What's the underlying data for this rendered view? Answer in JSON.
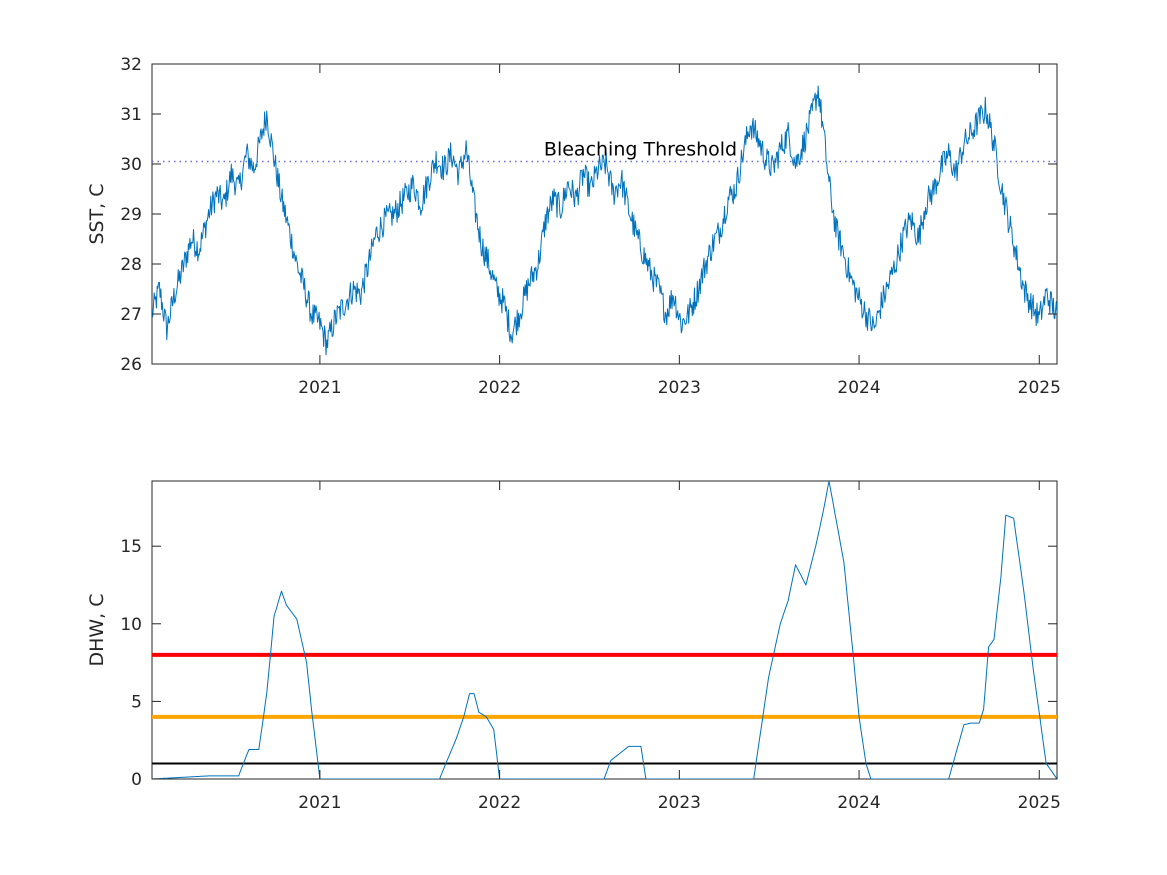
{
  "chart_data": [
    {
      "type": "line",
      "ylabel": "SST, C",
      "xlabel": "",
      "title": "",
      "xlim": [
        "2020-01-26",
        "2025-02-06"
      ],
      "ylim": [
        26,
        32
      ],
      "yticks": [
        26,
        27,
        28,
        29,
        30,
        31,
        32
      ],
      "xticks": [
        "2021",
        "2022",
        "2023",
        "2024",
        "2025"
      ],
      "threshold": {
        "value": 30.05,
        "label": "Bleaching Threshold",
        "label_x": "2022-04-01",
        "style": "dotted",
        "color": "#6a6ae0"
      },
      "series": [
        {
          "color": "#0072bd",
          "x": [
            "2020-01-26",
            "2020-02-10",
            "2020-02-25",
            "2020-03-12",
            "2020-03-28",
            "2020-04-15",
            "2020-05-01",
            "2020-05-20",
            "2020-06-05",
            "2020-06-20",
            "2020-07-05",
            "2020-07-20",
            "2020-08-05",
            "2020-08-20",
            "2020-09-05",
            "2020-09-15",
            "2020-09-30",
            "2020-10-15",
            "2020-10-30",
            "2020-11-15",
            "2020-12-01",
            "2020-12-15",
            "2021-01-01",
            "2021-01-15",
            "2021-02-01",
            "2021-02-20",
            "2021-03-10",
            "2021-03-25",
            "2021-04-10",
            "2021-04-25",
            "2021-05-15",
            "2021-06-01",
            "2021-06-20",
            "2021-07-10",
            "2021-07-25",
            "2021-08-10",
            "2021-08-25",
            "2021-09-10",
            "2021-09-25",
            "2021-10-10",
            "2021-10-25",
            "2021-11-10",
            "2021-11-25",
            "2021-12-10",
            "2021-12-25",
            "2022-01-10",
            "2022-01-25",
            "2022-02-10",
            "2022-03-01",
            "2022-03-20",
            "2022-04-05",
            "2022-04-20",
            "2022-05-05",
            "2022-05-20",
            "2022-06-05",
            "2022-06-20",
            "2022-07-05",
            "2022-07-20",
            "2022-08-05",
            "2022-08-20",
            "2022-09-05",
            "2022-09-20",
            "2022-10-05",
            "2022-10-20",
            "2022-11-05",
            "2022-11-20",
            "2022-12-05",
            "2022-12-20",
            "2023-01-05",
            "2023-01-20",
            "2023-02-05",
            "2023-02-20",
            "2023-03-10",
            "2023-03-25",
            "2023-04-10",
            "2023-04-25",
            "2023-05-10",
            "2023-05-25",
            "2023-06-10",
            "2023-06-25",
            "2023-07-10",
            "2023-07-25",
            "2023-08-10",
            "2023-08-25",
            "2023-09-10",
            "2023-09-25",
            "2023-10-10",
            "2023-10-20",
            "2023-11-01",
            "2023-11-15",
            "2023-12-01",
            "2023-12-15",
            "2024-01-01",
            "2024-01-15",
            "2024-02-01",
            "2024-02-15",
            "2024-03-01",
            "2024-03-15",
            "2024-04-01",
            "2024-04-15",
            "2024-05-01",
            "2024-05-15",
            "2024-06-01",
            "2024-06-15",
            "2024-07-01",
            "2024-07-15",
            "2024-08-01",
            "2024-08-15",
            "2024-09-01",
            "2024-09-15",
            "2024-10-01",
            "2024-10-15",
            "2024-10-30",
            "2024-11-15",
            "2024-12-01",
            "2024-12-15",
            "2025-01-01",
            "2025-01-15",
            "2025-02-06"
          ],
          "y": [
            27.0,
            27.5,
            26.7,
            27.4,
            27.9,
            28.5,
            28.3,
            29.0,
            29.4,
            29.2,
            29.8,
            29.5,
            30.2,
            29.9,
            30.6,
            31.0,
            30.1,
            29.3,
            28.7,
            28.0,
            27.5,
            27.0,
            26.8,
            26.4,
            26.9,
            27.2,
            27.5,
            27.4,
            28.0,
            28.6,
            28.9,
            29.0,
            29.3,
            29.6,
            29.2,
            29.7,
            30.1,
            29.9,
            30.2,
            29.8,
            30.3,
            29.2,
            28.4,
            28.0,
            27.5,
            27.2,
            26.6,
            27.0,
            27.6,
            28.0,
            28.9,
            29.3,
            29.1,
            29.6,
            29.3,
            29.8,
            29.5,
            29.9,
            30.0,
            29.4,
            29.7,
            29.1,
            28.6,
            28.2,
            27.8,
            27.5,
            27.0,
            27.4,
            26.8,
            27.0,
            27.4,
            27.9,
            28.4,
            28.7,
            29.3,
            29.5,
            30.2,
            30.8,
            30.5,
            30.1,
            29.9,
            30.3,
            30.6,
            30.0,
            30.4,
            30.9,
            31.5,
            30.7,
            29.6,
            28.7,
            28.2,
            27.7,
            27.3,
            27.0,
            26.7,
            27.2,
            27.6,
            28.0,
            28.6,
            28.9,
            28.5,
            29.2,
            29.5,
            29.9,
            30.2,
            29.8,
            30.4,
            30.6,
            30.9,
            31.1,
            30.4,
            29.6,
            28.9,
            28.2,
            27.5,
            27.2,
            26.9,
            27.4,
            27.0
          ]
        }
      ]
    },
    {
      "type": "line",
      "ylabel": "DHW, C",
      "xlabel": "",
      "title": "",
      "xlim": [
        "2020-01-26",
        "2025-02-06"
      ],
      "ylim": [
        0,
        19.2
      ],
      "yticks": [
        0,
        5,
        10,
        15
      ],
      "xticks": [
        "2021",
        "2022",
        "2023",
        "2024",
        "2025"
      ],
      "reference_lines": [
        {
          "value": 1,
          "color": "#000000"
        },
        {
          "value": 4,
          "color": "#ffa500"
        },
        {
          "value": 8,
          "color": "#ff0000"
        }
      ],
      "series": [
        {
          "color": "#0072bd",
          "x": [
            "2020-01-26",
            "2020-05-20",
            "2020-07-20",
            "2020-08-01",
            "2020-08-10",
            "2020-08-30",
            "2020-09-15",
            "2020-09-30",
            "2020-10-15",
            "2020-10-25",
            "2020-11-15",
            "2020-12-05",
            "2020-12-15",
            "2021-01-01",
            "2021-09-01",
            "2021-09-15",
            "2021-10-05",
            "2021-10-20",
            "2021-11-01",
            "2021-11-10",
            "2021-11-20",
            "2021-12-05",
            "2021-12-20",
            "2022-01-01",
            "2022-08-01",
            "2022-08-15",
            "2022-09-20",
            "2022-10-01",
            "2022-10-15",
            "2022-10-25",
            "2023-06-01",
            "2023-07-01",
            "2023-07-25",
            "2023-08-10",
            "2023-08-25",
            "2023-09-15",
            "2023-10-05",
            "2023-10-20",
            "2023-11-01",
            "2023-12-01",
            "2023-12-20",
            "2024-01-01",
            "2024-01-15",
            "2024-01-25",
            "2024-07-01",
            "2024-08-01",
            "2024-08-15",
            "2024-09-01",
            "2024-09-10",
            "2024-09-20",
            "2024-10-01",
            "2024-10-15",
            "2024-10-25",
            "2024-11-10",
            "2024-12-01",
            "2024-12-20",
            "2025-01-15",
            "2025-02-06"
          ],
          "y": [
            0,
            0.2,
            0.2,
            1.2,
            1.9,
            1.9,
            5.5,
            10.5,
            12.1,
            11.2,
            10.3,
            7.5,
            4.5,
            0,
            0,
            1.1,
            2.6,
            4.0,
            5.5,
            5.5,
            4.3,
            4.0,
            3.2,
            0,
            0,
            1.2,
            2.1,
            2.1,
            2.1,
            0,
            0,
            6.5,
            10.0,
            11.5,
            13.8,
            12.5,
            15.0,
            17.2,
            19.2,
            14.0,
            8.0,
            4.0,
            1.0,
            0,
            0,
            3.5,
            3.6,
            3.6,
            4.5,
            8.5,
            9.0,
            13.0,
            17.0,
            16.8,
            12.0,
            7.0,
            1.0,
            0
          ]
        }
      ]
    }
  ]
}
